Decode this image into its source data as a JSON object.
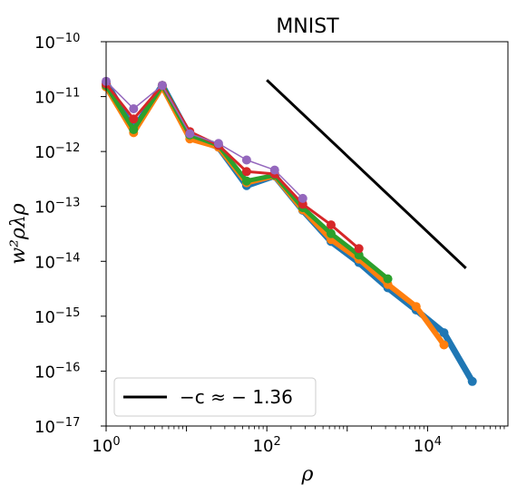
{
  "chart_data": {
    "type": "line",
    "title": "MNIST",
    "xlabel": "ρ",
    "ylabel": "w²ρλρ",
    "xscale": "log",
    "yscale": "log",
    "xlim": [
      1,
      100000
    ],
    "ylim": [
      1e-17,
      1e-10
    ],
    "x_ticks": [
      {
        "value": 1,
        "mantissa": "10",
        "exp": "0"
      },
      {
        "value": 100,
        "mantissa": "10",
        "exp": "2"
      },
      {
        "value": 10000,
        "mantissa": "10",
        "exp": "4"
      }
    ],
    "y_ticks": [
      {
        "value": 1e-10,
        "mantissa": "10",
        "exp": "−10"
      },
      {
        "value": 1e-11,
        "mantissa": "10",
        "exp": "−11"
      },
      {
        "value": 1e-12,
        "mantissa": "10",
        "exp": "−12"
      },
      {
        "value": 1e-13,
        "mantissa": "10",
        "exp": "−13"
      },
      {
        "value": 1e-14,
        "mantissa": "10",
        "exp": "−14"
      },
      {
        "value": 1e-15,
        "mantissa": "10",
        "exp": "−15"
      },
      {
        "value": 1e-16,
        "mantissa": "10",
        "exp": "−16"
      },
      {
        "value": 1e-17,
        "mantissa": "10",
        "exp": "−17"
      }
    ],
    "series": [
      {
        "color": "#1f77b4",
        "width": 7,
        "marker": 5,
        "x": [
          1,
          2.2,
          5,
          11,
          25,
          56,
          125,
          280,
          630,
          1400,
          3200,
          7200,
          16000,
          36000
        ],
        "y": [
          1.8e-11,
          2.5e-12,
          1.6e-11,
          1.9e-12,
          1.2e-12,
          2.4e-13,
          3.6e-13,
          8.5e-14,
          2.3e-14,
          9.5e-15,
          3.3e-15,
          1.3e-15,
          5e-16,
          6.5e-17
        ]
      },
      {
        "color": "#ff7f0e",
        "width": 6,
        "marker": 5,
        "x": [
          1,
          2.2,
          5,
          11,
          25,
          56,
          125,
          280,
          630,
          1400,
          3200,
          7200,
          16000
        ],
        "y": [
          1.5e-11,
          2.2e-12,
          1.5e-11,
          1.7e-12,
          1.2e-12,
          2.7e-13,
          3.6e-13,
          8.7e-14,
          2.5e-14,
          1.1e-14,
          3.8e-15,
          1.5e-15,
          3e-16
        ]
      },
      {
        "color": "#2ca02c",
        "width": 5,
        "marker": 5,
        "x": [
          1,
          2.2,
          5,
          11,
          25,
          56,
          125,
          280,
          630,
          1400,
          3200
        ],
        "y": [
          1.6e-11,
          2.5e-12,
          1.6e-11,
          2e-12,
          1.3e-12,
          2.9e-13,
          3.7e-13,
          9.5e-14,
          3.2e-14,
          1.3e-14,
          4.8e-15
        ]
      },
      {
        "color": "#d62728",
        "width": 3,
        "marker": 5,
        "x": [
          1,
          2.2,
          5,
          11,
          25,
          56,
          125,
          280,
          630,
          1400
        ],
        "y": [
          1.7e-11,
          3.9e-12,
          1.6e-11,
          2.3e-12,
          1.3e-12,
          4.3e-13,
          3.9e-13,
          1.1e-13,
          4.6e-14,
          1.7e-14
        ]
      },
      {
        "color": "#9467bd",
        "width": 1.5,
        "marker": 5,
        "x": [
          1,
          2.2,
          5,
          11,
          25,
          56,
          125,
          280
        ],
        "y": [
          1.9e-11,
          6e-12,
          1.6e-11,
          2.1e-12,
          1.4e-12,
          7e-13,
          4.6e-13,
          1.4e-13
        ]
      }
    ],
    "reference_line": {
      "label": "−c ≈ − 1.36",
      "color": "#000000",
      "x": [
        100,
        30000
      ],
      "y": [
        2e-11,
        7.5e-15
      ]
    },
    "legend_position": "lower-left",
    "grid": false
  }
}
